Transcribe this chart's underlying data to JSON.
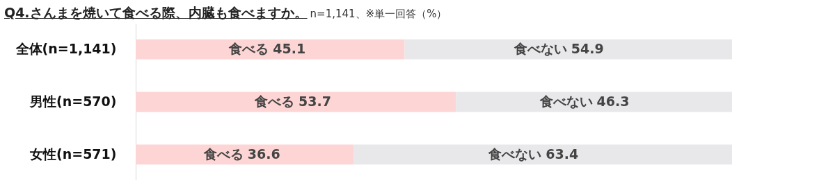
{
  "chart_data": {
    "type": "bar",
    "orientation": "horizontal",
    "stacked": true,
    "title": "Q4.さんまを焼いて食べる際、内臓も食べますか。",
    "subtitle": "n=1,141、※単一回答（%）",
    "categories": [
      "全体(n=1,141)",
      "男性(n=570)",
      "女性(n=571)"
    ],
    "series": [
      {
        "name": "食べる",
        "color": "#fdd5d5",
        "values": [
          45.1,
          53.7,
          36.6
        ]
      },
      {
        "name": "食べない",
        "color": "#e8e8ea",
        "values": [
          54.9,
          46.3,
          63.4
        ]
      }
    ],
    "data_labels": true,
    "legend": false
  }
}
